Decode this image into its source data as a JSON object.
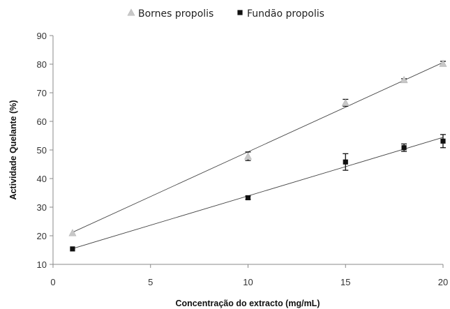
{
  "chart_data": {
    "type": "scatter",
    "title": "",
    "xlabel": "Concentração do extracto (mg/mL)",
    "ylabel": "Actividade Quelante (%)",
    "xlim": [
      0,
      20
    ],
    "ylim": [
      10,
      90
    ],
    "x_ticks": [
      0,
      5,
      10,
      15,
      20
    ],
    "y_ticks": [
      10,
      20,
      30,
      40,
      50,
      60,
      70,
      80,
      90
    ],
    "grid": false,
    "legend_position": "top",
    "series": [
      {
        "name": "Bornes propolis",
        "marker": "triangle",
        "color": "#c8c8c8",
        "x": [
          1,
          10,
          15,
          18,
          20
        ],
        "y": [
          21,
          47.8,
          66.5,
          74.5,
          80.2
        ],
        "error": [
          0,
          1.5,
          1.2,
          0.4,
          0.8
        ],
        "trendline": {
          "x": [
            1,
            20
          ],
          "y": [
            21.2,
            80.6
          ]
        }
      },
      {
        "name": "Fundão propolis",
        "marker": "square",
        "color": "#111111",
        "x": [
          1,
          10,
          15,
          18,
          20
        ],
        "y": [
          15.4,
          33.3,
          45.8,
          50.8,
          53.1
        ],
        "error": [
          0,
          0.6,
          2.9,
          1.3,
          2.3
        ],
        "trendline": {
          "x": [
            1,
            20
          ],
          "y": [
            15.5,
            54.4
          ]
        }
      }
    ]
  }
}
